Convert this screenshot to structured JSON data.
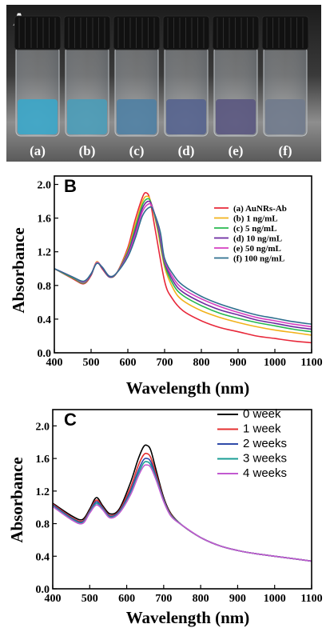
{
  "photo": {
    "panel_label": "A",
    "vials": [
      {
        "label": "(a)",
        "color": "#3aa6c9"
      },
      {
        "label": "(b)",
        "color": "#4a9cb8"
      },
      {
        "label": "(c)",
        "color": "#4f7fa3"
      },
      {
        "label": "(d)",
        "color": "#55638e"
      },
      {
        "label": "(e)",
        "color": "#5a5680"
      },
      {
        "label": "(f)",
        "color": "#707a8c"
      }
    ]
  },
  "chart_data": [
    {
      "panel_label": "B",
      "type": "line",
      "xlabel": "Wavelength (nm)",
      "ylabel": "Absorbance",
      "xlim": [
        400,
        1100
      ],
      "ylim": [
        0,
        2.1
      ],
      "xticks": [
        400,
        500,
        600,
        700,
        800,
        900,
        1000,
        1100
      ],
      "yticks": [
        0.0,
        0.4,
        0.8,
        1.2,
        1.6,
        2.0
      ],
      "ytick_labels": [
        "0.0",
        "0.4",
        "0.8",
        "1.2",
        "1.6",
        "2.0"
      ],
      "legend_position": "top-right",
      "series": [
        {
          "name": "(a)  AuNRs-Ab",
          "color": "#e8283a",
          "x": [
            400,
            450,
            480,
            500,
            515,
            530,
            550,
            570,
            600,
            620,
            640,
            650,
            660,
            675,
            700,
            720,
            750,
            800,
            850,
            900,
            950,
            1000,
            1050,
            1100
          ],
          "y": [
            1.0,
            0.88,
            0.82,
            0.92,
            1.08,
            1.0,
            0.9,
            0.95,
            1.25,
            1.58,
            1.85,
            1.9,
            1.82,
            1.45,
            0.85,
            0.65,
            0.5,
            0.38,
            0.3,
            0.25,
            0.2,
            0.17,
            0.14,
            0.12
          ]
        },
        {
          "name": "(b)  1    ng/mL",
          "color": "#f2b21b",
          "x": [
            400,
            450,
            480,
            500,
            515,
            530,
            550,
            570,
            600,
            620,
            640,
            652,
            662,
            680,
            700,
            725,
            750,
            800,
            850,
            900,
            950,
            1000,
            1050,
            1100
          ],
          "y": [
            1.0,
            0.89,
            0.83,
            0.93,
            1.08,
            1.01,
            0.9,
            0.95,
            1.22,
            1.52,
            1.8,
            1.86,
            1.8,
            1.48,
            1.02,
            0.75,
            0.62,
            0.5,
            0.42,
            0.36,
            0.31,
            0.27,
            0.24,
            0.21
          ]
        },
        {
          "name": "(c)  5    ng/mL",
          "color": "#27b84f",
          "x": [
            400,
            450,
            480,
            500,
            515,
            530,
            550,
            570,
            600,
            620,
            640,
            654,
            664,
            682,
            700,
            725,
            750,
            800,
            850,
            900,
            950,
            1000,
            1050,
            1100
          ],
          "y": [
            1.0,
            0.89,
            0.83,
            0.93,
            1.07,
            1.01,
            0.9,
            0.95,
            1.2,
            1.48,
            1.76,
            1.83,
            1.77,
            1.47,
            1.05,
            0.8,
            0.68,
            0.56,
            0.47,
            0.41,
            0.36,
            0.32,
            0.28,
            0.25
          ]
        },
        {
          "name": "(d)  10   ng/mL",
          "color": "#6c2aa0",
          "x": [
            400,
            450,
            480,
            500,
            515,
            530,
            550,
            570,
            600,
            620,
            640,
            656,
            666,
            684,
            700,
            725,
            750,
            800,
            850,
            900,
            950,
            1000,
            1050,
            1100
          ],
          "y": [
            1.0,
            0.9,
            0.84,
            0.93,
            1.07,
            1.01,
            0.9,
            0.95,
            1.18,
            1.44,
            1.72,
            1.8,
            1.74,
            1.46,
            1.08,
            0.84,
            0.72,
            0.6,
            0.51,
            0.45,
            0.39,
            0.35,
            0.31,
            0.28
          ]
        },
        {
          "name": "(e)  50   ng/mL",
          "color": "#d43fc0",
          "x": [
            400,
            450,
            480,
            500,
            515,
            530,
            550,
            570,
            600,
            620,
            640,
            658,
            668,
            686,
            700,
            725,
            750,
            800,
            850,
            900,
            950,
            1000,
            1050,
            1100
          ],
          "y": [
            1.0,
            0.9,
            0.84,
            0.94,
            1.07,
            1.02,
            0.91,
            0.95,
            1.16,
            1.4,
            1.68,
            1.77,
            1.71,
            1.45,
            1.1,
            0.88,
            0.76,
            0.64,
            0.55,
            0.48,
            0.42,
            0.38,
            0.34,
            0.31
          ]
        },
        {
          "name": "(f)  100 ng/mL",
          "color": "#2f6f8f",
          "x": [
            400,
            450,
            480,
            500,
            515,
            530,
            550,
            570,
            600,
            620,
            640,
            660,
            670,
            688,
            700,
            725,
            750,
            800,
            850,
            900,
            950,
            1000,
            1050,
            1100
          ],
          "y": [
            1.0,
            0.9,
            0.85,
            0.94,
            1.06,
            1.02,
            0.91,
            0.95,
            1.14,
            1.36,
            1.63,
            1.73,
            1.68,
            1.44,
            1.12,
            0.92,
            0.8,
            0.67,
            0.58,
            0.51,
            0.45,
            0.41,
            0.37,
            0.34
          ]
        }
      ]
    },
    {
      "panel_label": "C",
      "type": "line",
      "xlabel": "Wavelength (nm)",
      "ylabel": "Absorbance",
      "xlim": [
        400,
        1100
      ],
      "ylim": [
        0,
        2.2
      ],
      "xticks": [
        400,
        500,
        600,
        700,
        800,
        900,
        1000,
        1100
      ],
      "yticks": [
        0.0,
        0.4,
        0.8,
        1.2,
        1.6,
        2.0
      ],
      "ytick_labels": [
        "0.0",
        "0.4",
        "0.8",
        "1.2",
        "1.6",
        "2.0"
      ],
      "legend_position": "top-right",
      "series": [
        {
          "name": "0 week",
          "color": "#000000",
          "x": [
            400,
            450,
            480,
            500,
            518,
            535,
            555,
            580,
            610,
            630,
            645,
            655,
            665,
            680,
            700,
            720,
            750,
            800,
            850,
            900,
            950,
            1000,
            1050,
            1100
          ],
          "y": [
            1.05,
            0.9,
            0.85,
            0.98,
            1.12,
            1.02,
            0.92,
            0.98,
            1.3,
            1.58,
            1.74,
            1.76,
            1.7,
            1.45,
            1.12,
            0.92,
            0.78,
            0.63,
            0.53,
            0.47,
            0.43,
            0.4,
            0.37,
            0.34
          ]
        },
        {
          "name": "1 week",
          "color": "#e53030",
          "x": [
            400,
            450,
            480,
            500,
            518,
            535,
            555,
            580,
            610,
            630,
            645,
            655,
            665,
            680,
            700,
            720,
            750,
            800,
            850,
            900,
            950,
            1000,
            1050,
            1100
          ],
          "y": [
            1.04,
            0.88,
            0.83,
            0.96,
            1.09,
            1.0,
            0.9,
            0.96,
            1.24,
            1.5,
            1.64,
            1.66,
            1.61,
            1.4,
            1.1,
            0.91,
            0.78,
            0.63,
            0.53,
            0.47,
            0.43,
            0.4,
            0.37,
            0.34
          ]
        },
        {
          "name": "2 weeks",
          "color": "#2f4aa8",
          "x": [
            400,
            450,
            480,
            500,
            518,
            535,
            555,
            580,
            610,
            630,
            645,
            655,
            665,
            680,
            700,
            720,
            750,
            800,
            850,
            900,
            950,
            1000,
            1050,
            1100
          ],
          "y": [
            1.03,
            0.87,
            0.82,
            0.95,
            1.07,
            0.99,
            0.89,
            0.95,
            1.2,
            1.44,
            1.58,
            1.6,
            1.56,
            1.37,
            1.09,
            0.9,
            0.78,
            0.63,
            0.53,
            0.47,
            0.43,
            0.4,
            0.37,
            0.34
          ]
        },
        {
          "name": "3 weeks",
          "color": "#1a9e95",
          "x": [
            400,
            450,
            480,
            500,
            518,
            535,
            555,
            580,
            610,
            630,
            645,
            655,
            665,
            680,
            700,
            720,
            750,
            800,
            850,
            900,
            950,
            1000,
            1050,
            1100
          ],
          "y": [
            1.02,
            0.86,
            0.81,
            0.94,
            1.05,
            0.98,
            0.88,
            0.94,
            1.17,
            1.4,
            1.54,
            1.56,
            1.52,
            1.35,
            1.08,
            0.9,
            0.78,
            0.63,
            0.53,
            0.47,
            0.43,
            0.4,
            0.37,
            0.34
          ]
        },
        {
          "name": "4 weeks",
          "color": "#c25ad0",
          "x": [
            400,
            450,
            480,
            500,
            518,
            535,
            555,
            580,
            610,
            630,
            645,
            655,
            665,
            680,
            700,
            720,
            750,
            800,
            850,
            900,
            950,
            1000,
            1050,
            1100
          ],
          "y": [
            1.01,
            0.85,
            0.8,
            0.93,
            1.03,
            0.97,
            0.87,
            0.93,
            1.15,
            1.37,
            1.5,
            1.52,
            1.49,
            1.33,
            1.07,
            0.89,
            0.78,
            0.63,
            0.53,
            0.47,
            0.43,
            0.4,
            0.37,
            0.34
          ]
        }
      ]
    }
  ]
}
